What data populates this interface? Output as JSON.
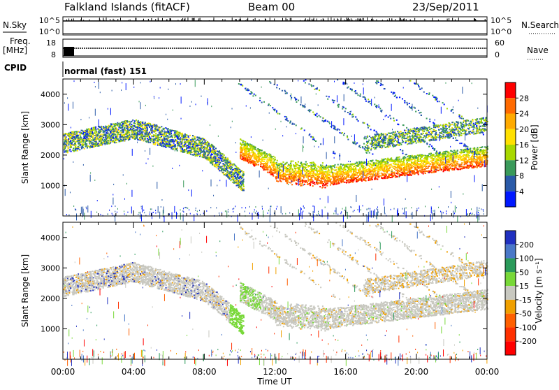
{
  "header": {
    "station": "Falkland Islands (fitACF)",
    "beam": "Beam 00",
    "date": "23/Sep/2011"
  },
  "strips": {
    "nsky_label": "N.Sky",
    "nsky_ticks": [
      "10^5",
      "10^0"
    ],
    "nsearch_label": "N.Search",
    "nsearch_ticks": [
      "10^5",
      "10^0"
    ],
    "freq_label_1": "Freq.",
    "freq_label_2": "[MHz]",
    "freq_ticks": [
      "18",
      "8"
    ],
    "nave_label": "Nave",
    "nave_ticks": [
      "60",
      "0"
    ],
    "cpid_label": "CPID",
    "cpid_value": "normal (fast) 151"
  },
  "chart_data": [
    {
      "type": "heatmap",
      "name": "power-panel",
      "xlabel": "",
      "ylabel": "Slant Range [km]",
      "ylim": [
        0,
        4500
      ],
      "y_ticks": [
        1000,
        2000,
        3000,
        4000
      ],
      "y_tick_labels": [
        "1000",
        "2000",
        "3000",
        "4000"
      ],
      "xlim": [
        0,
        24
      ],
      "colorbar": {
        "label": "Power [dB]",
        "ticks": [
          "28",
          "24",
          "20",
          "16",
          "12",
          "8",
          "4"
        ],
        "colors": [
          "#ff0000",
          "#ff6a00",
          "#ffaa00",
          "#ffe000",
          "#a8d800",
          "#3a9a5a",
          "#2a5aa8",
          "#0018ff"
        ]
      },
      "features": [
        {
          "band": "upper-layer",
          "range_km": [
            2200,
            3300
          ],
          "hours": [
            0,
            9.5
          ],
          "power_db": [
            6,
            16
          ]
        },
        {
          "band": "lower-layer",
          "range_km": [
            800,
            1800
          ],
          "hours": [
            10,
            24
          ],
          "power_db": [
            16,
            30
          ]
        }
      ]
    },
    {
      "type": "heatmap",
      "name": "velocity-panel",
      "xlabel": "Time UT",
      "ylabel": "Slant Range [km]",
      "ylim": [
        0,
        4500
      ],
      "y_ticks": [
        1000,
        2000,
        3000,
        4000
      ],
      "y_tick_labels": [
        "1000",
        "2000",
        "3000",
        "4000"
      ],
      "xlim": [
        0,
        24
      ],
      "x_ticks": [
        0,
        4,
        8,
        12,
        16,
        20,
        24
      ],
      "x_tick_labels": [
        "00:00",
        "04:00",
        "08:00",
        "12:00",
        "16:00",
        "20:00",
        "00:00"
      ],
      "colorbar": {
        "label": "Velocity [m s⁻¹]",
        "ticks": [
          "200",
          "100",
          "50",
          "15",
          "-15",
          "-50",
          "-100",
          "-200"
        ],
        "colors": [
          "#2030c0",
          "#4a78c8",
          "#2a9a5a",
          "#78d838",
          "#c8c8c0",
          "#f0a000",
          "#ff6000",
          "#ff3000",
          "#ff0000"
        ]
      }
    }
  ]
}
